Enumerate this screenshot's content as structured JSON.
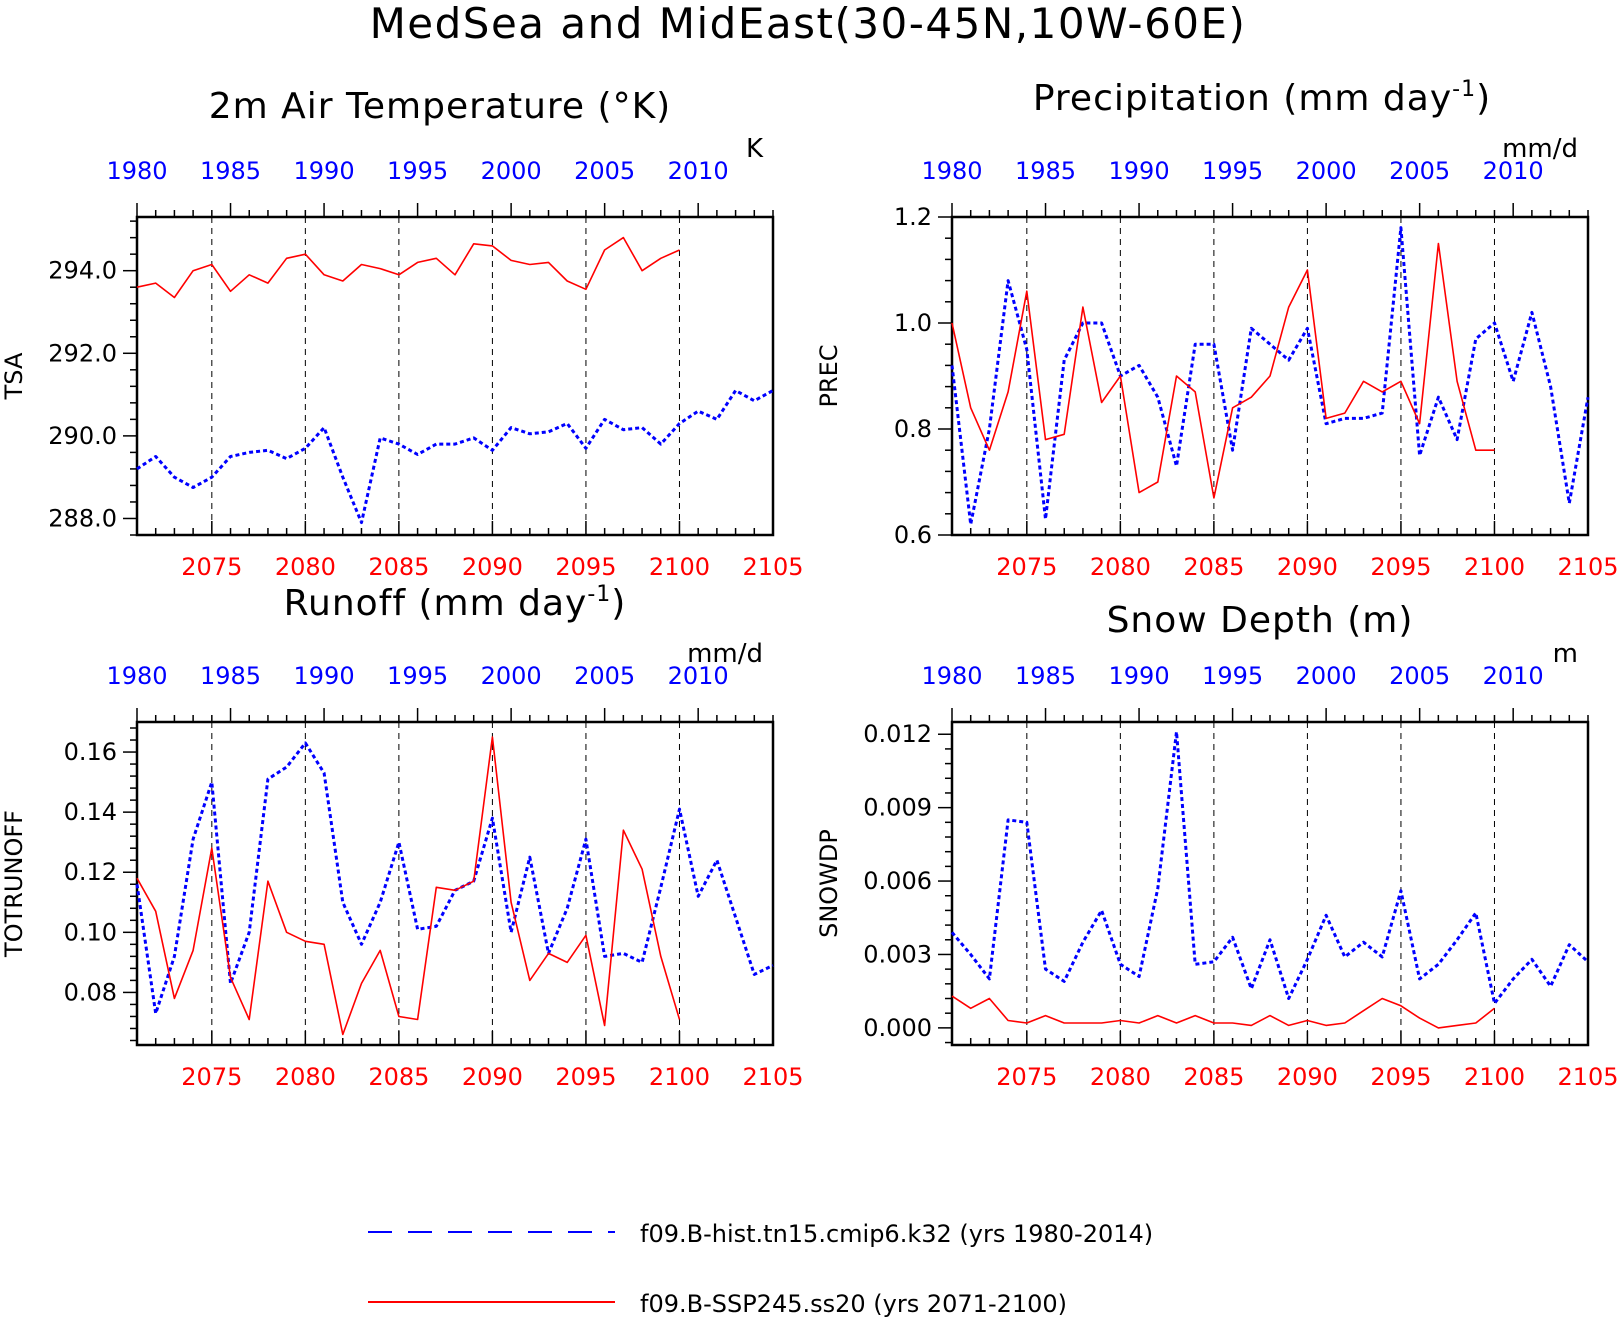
{
  "figure": {
    "title": "MedSea and MidEast(30-45N,10W-60E)",
    "legend": [
      {
        "label": "f09.B-hist.tn15.cmip6.k32 (yrs 1980-2014)",
        "color": "#0000ff",
        "style": "dashed"
      },
      {
        "label": "f09.B-SSP245.ss20 (yrs 2071-2100)",
        "color": "#ff0000",
        "style": "solid"
      }
    ]
  },
  "chart_data": [
    {
      "type": "line",
      "title": "2m Air Temperature (°K)",
      "ylabel": "TSA",
      "units": "K",
      "ylim": [
        287.6,
        295.3
      ],
      "yticks": [
        288.0,
        290.0,
        292.0,
        294.0
      ],
      "ytick_labels": [
        "288.0",
        "290.0",
        "292.0",
        "294.0"
      ],
      "bottom_axis": {
        "range": [
          2071,
          2105
        ],
        "ticks": [
          2075,
          2080,
          2085,
          2090,
          2095,
          2100,
          2105
        ]
      },
      "top_axis": {
        "range": [
          1980,
          2014
        ],
        "ticks": [
          1980,
          1985,
          1990,
          1995,
          2000,
          2005,
          2010
        ]
      },
      "series": [
        {
          "name": "f09.B-hist.tn15.cmip6.k32 (yrs 1980-2014)",
          "years": [
            1980,
            2014
          ],
          "color": "#0000ff",
          "values": [
            289.2,
            289.5,
            289.0,
            288.75,
            289.0,
            289.5,
            289.6,
            289.65,
            289.45,
            289.7,
            290.2,
            289.0,
            287.9,
            289.95,
            289.8,
            289.55,
            289.8,
            289.8,
            289.95,
            289.65,
            290.2,
            290.05,
            290.1,
            290.3,
            289.7,
            290.4,
            290.15,
            290.2,
            289.8,
            290.3,
            290.6,
            290.4,
            291.1,
            290.85,
            291.1
          ]
        },
        {
          "name": "f09.B-SSP245.ss20 (yrs 2071-2100)",
          "years": [
            2071,
            2100
          ],
          "color": "#ff0000",
          "values": [
            293.6,
            293.7,
            293.35,
            294.0,
            294.15,
            293.5,
            293.9,
            293.7,
            294.3,
            294.4,
            293.9,
            293.75,
            294.15,
            294.05,
            293.9,
            294.2,
            294.3,
            293.9,
            294.65,
            294.6,
            294.25,
            294.15,
            294.2,
            293.75,
            293.55,
            294.5,
            294.8,
            294.0,
            294.3,
            294.5
          ]
        }
      ]
    },
    {
      "type": "line",
      "title": "Precipitation (mm day⁻¹)",
      "ylabel": "PREC",
      "units": "mm/d",
      "ylim": [
        0.6,
        1.2
      ],
      "yticks": [
        0.6,
        0.8,
        1.0,
        1.2
      ],
      "ytick_labels": [
        "0.6",
        "0.8",
        "1.0",
        "1.2"
      ],
      "bottom_axis": {
        "range": [
          2071,
          2105
        ],
        "ticks": [
          2075,
          2080,
          2085,
          2090,
          2095,
          2100,
          2105
        ]
      },
      "top_axis": {
        "range": [
          1980,
          2014
        ],
        "ticks": [
          1980,
          1985,
          1990,
          1995,
          2000,
          2005,
          2010
        ]
      },
      "series": [
        {
          "name": "f09.B-hist.tn15.cmip6.k32 (yrs 1980-2014)",
          "years": [
            1980,
            2014
          ],
          "color": "#0000ff",
          "values": [
            0.92,
            0.62,
            0.8,
            1.08,
            0.95,
            0.63,
            0.93,
            1.0,
            1.0,
            0.9,
            0.92,
            0.86,
            0.73,
            0.96,
            0.96,
            0.76,
            0.99,
            0.96,
            0.93,
            0.99,
            0.81,
            0.82,
            0.82,
            0.83,
            1.18,
            0.75,
            0.86,
            0.78,
            0.97,
            1.0,
            0.89,
            1.02,
            0.88,
            0.66,
            0.86
          ]
        },
        {
          "name": "f09.B-SSP245.ss20 (yrs 2071-2100)",
          "years": [
            2071,
            2100
          ],
          "color": "#ff0000",
          "values": [
            1.0,
            0.84,
            0.76,
            0.87,
            1.06,
            0.78,
            0.79,
            1.03,
            0.85,
            0.9,
            0.68,
            0.7,
            0.9,
            0.87,
            0.67,
            0.84,
            0.86,
            0.9,
            1.03,
            1.1,
            0.82,
            0.83,
            0.89,
            0.87,
            0.89,
            0.81,
            1.15,
            0.89,
            0.76,
            0.76
          ]
        }
      ]
    },
    {
      "type": "line",
      "title": "Runoff (mm day⁻¹)",
      "ylabel": "TOTRUNOFF",
      "units": "mm/d",
      "ylim": [
        0.0625,
        0.17
      ],
      "yticks": [
        0.08,
        0.1,
        0.12,
        0.14,
        0.16
      ],
      "ytick_labels": [
        "0.08",
        "0.10",
        "0.12",
        "0.14",
        "0.16"
      ],
      "bottom_axis": {
        "range": [
          2071,
          2105
        ],
        "ticks": [
          2075,
          2080,
          2085,
          2090,
          2095,
          2100,
          2105
        ]
      },
      "top_axis": {
        "range": [
          1980,
          2014
        ],
        "ticks": [
          1980,
          1985,
          1990,
          1995,
          2000,
          2005,
          2010
        ]
      },
      "series": [
        {
          "name": "f09.B-hist.tn15.cmip6.k32 (yrs 1980-2014)",
          "years": [
            1980,
            2014
          ],
          "color": "#0000ff",
          "values": [
            0.116,
            0.073,
            0.092,
            0.131,
            0.15,
            0.083,
            0.1,
            0.151,
            0.155,
            0.163,
            0.153,
            0.11,
            0.096,
            0.11,
            0.13,
            0.101,
            0.102,
            0.114,
            0.117,
            0.138,
            0.1,
            0.125,
            0.093,
            0.108,
            0.131,
            0.092,
            0.093,
            0.09,
            0.115,
            0.141,
            0.112,
            0.124,
            0.105,
            0.086,
            0.089
          ]
        },
        {
          "name": "f09.B-SSP245.ss20 (yrs 2071-2100)",
          "years": [
            2071,
            2100
          ],
          "color": "#ff0000",
          "values": [
            0.118,
            0.107,
            0.078,
            0.094,
            0.128,
            0.085,
            0.071,
            0.117,
            0.1,
            0.097,
            0.096,
            0.066,
            0.083,
            0.094,
            0.072,
            0.071,
            0.115,
            0.114,
            0.117,
            0.165,
            0.11,
            0.084,
            0.093,
            0.09,
            0.099,
            0.069,
            0.134,
            0.121,
            0.092,
            0.071
          ]
        }
      ]
    },
    {
      "type": "line",
      "title": "Snow Depth (m)",
      "ylabel": "SNOWDP",
      "units": "m",
      "ylim": [
        -0.0007,
        0.0125
      ],
      "yticks": [
        0.0,
        0.003,
        0.006,
        0.009,
        0.012
      ],
      "ytick_labels": [
        "0.000",
        "0.003",
        "0.006",
        "0.009",
        "0.012"
      ],
      "bottom_axis": {
        "range": [
          2071,
          2105
        ],
        "ticks": [
          2075,
          2080,
          2085,
          2090,
          2095,
          2100,
          2105
        ]
      },
      "top_axis": {
        "range": [
          1980,
          2014
        ],
        "ticks": [
          1980,
          1985,
          1990,
          1995,
          2000,
          2005,
          2010
        ]
      },
      "series": [
        {
          "name": "f09.B-hist.tn15.cmip6.k32 (yrs 1980-2014)",
          "years": [
            1980,
            2014
          ],
          "color": "#0000ff",
          "values": [
            0.0039,
            0.003,
            0.002,
            0.0085,
            0.0084,
            0.0024,
            0.0019,
            0.0035,
            0.0048,
            0.0026,
            0.0021,
            0.0057,
            0.0121,
            0.0026,
            0.0027,
            0.0037,
            0.0016,
            0.0036,
            0.0012,
            0.0028,
            0.0046,
            0.0029,
            0.0035,
            0.0029,
            0.0056,
            0.002,
            0.0026,
            0.0036,
            0.0047,
            0.001,
            0.002,
            0.0028,
            0.0017,
            0.0034,
            0.0027
          ]
        },
        {
          "name": "f09.B-SSP245.ss20 (yrs 2071-2100)",
          "years": [
            2071,
            2100
          ],
          "color": "#ff0000",
          "values": [
            0.0013,
            0.0008,
            0.0012,
            0.0003,
            0.0002,
            0.0005,
            0.0002,
            0.0002,
            0.0002,
            0.0003,
            0.0002,
            0.0005,
            0.0002,
            0.0005,
            0.0002,
            0.0002,
            0.0001,
            0.0005,
            0.0001,
            0.0003,
            0.0001,
            0.0002,
            0.0007,
            0.0012,
            0.0009,
            0.0004,
            0.0,
            0.0001,
            0.0002,
            0.0008
          ]
        }
      ]
    }
  ]
}
